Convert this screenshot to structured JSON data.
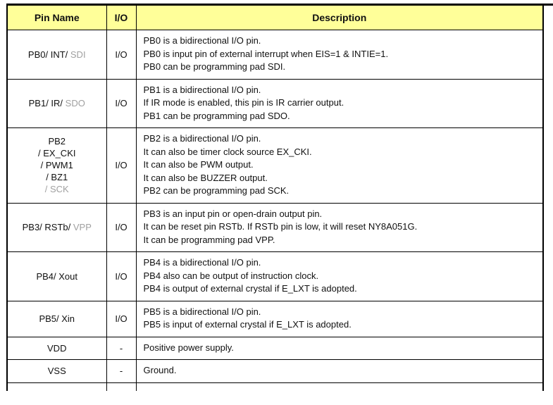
{
  "colors": {
    "header_bg": "#FFFF99",
    "border": "#000000",
    "text": "#111111",
    "gray": "#A0A0A0"
  },
  "header": {
    "pin_name": "Pin Name",
    "io": "I/O",
    "description": "Description"
  },
  "rows": [
    {
      "pin_lines": [
        [
          {
            "t": "PB0/ INT/ "
          },
          {
            "t": "SDI",
            "gray": true
          }
        ]
      ],
      "io": "I/O",
      "desc_lines": [
        "PB0 is a bidirectional I/O pin.",
        "PB0 is input pin of external interrupt when EIS=1 & INTIE=1.",
        "PB0 can be programming pad SDI."
      ]
    },
    {
      "pin_lines": [
        [
          {
            "t": "PB1/ IR/ "
          },
          {
            "t": "SDO",
            "gray": true
          }
        ]
      ],
      "io": "I/O",
      "desc_lines": [
        "PB1 is a bidirectional I/O pin.",
        "If IR mode is enabled, this pin is IR carrier output.",
        "PB1 can be programming pad SDO."
      ]
    },
    {
      "pin_lines": [
        [
          {
            "t": "PB2"
          }
        ],
        [
          {
            "t": "/ EX_CKI"
          }
        ],
        [
          {
            "t": "/ PWM1"
          }
        ],
        [
          {
            "t": "/ BZ1"
          }
        ],
        [
          {
            "t": "/ SCK",
            "gray": true
          }
        ]
      ],
      "io": "I/O",
      "desc_lines": [
        "PB2 is a bidirectional I/O pin.",
        "It can also be timer clock source EX_CKI.",
        "It can also be PWM output.",
        "It can also be BUZZER output.",
        "PB2 can be programming pad SCK."
      ]
    },
    {
      "pin_lines": [
        [
          {
            "t": "PB3/ RSTb/ "
          },
          {
            "t": "VPP",
            "gray": true
          }
        ]
      ],
      "io": "I/O",
      "desc_lines": [
        "PB3 is an input pin or open-drain output pin.",
        "It can be reset pin RSTb. If RSTb pin is low, it will reset NY8A051G.",
        "It can be programming pad VPP."
      ]
    },
    {
      "pin_lines": [
        [
          {
            "t": "PB4/ Xout"
          }
        ]
      ],
      "io": "I/O",
      "desc_lines": [
        "PB4 is a bidirectional I/O pin.",
        "PB4 also can be output of instruction clock.",
        "PB4 is output of external crystal if E_LXT is adopted."
      ]
    },
    {
      "pin_lines": [
        [
          {
            "t": "PB5/ Xin"
          }
        ]
      ],
      "io": "I/O",
      "desc_lines": [
        "PB5 is a bidirectional I/O pin.",
        "PB5 is input of external crystal if E_LXT is adopted."
      ]
    },
    {
      "pin_lines": [
        [
          {
            "t": "VDD"
          }
        ]
      ],
      "io": "-",
      "desc_lines": [
        "Positive power supply."
      ]
    },
    {
      "pin_lines": [
        [
          {
            "t": "VSS"
          }
        ]
      ],
      "io": "-",
      "desc_lines": [
        "Ground."
      ]
    }
  ]
}
